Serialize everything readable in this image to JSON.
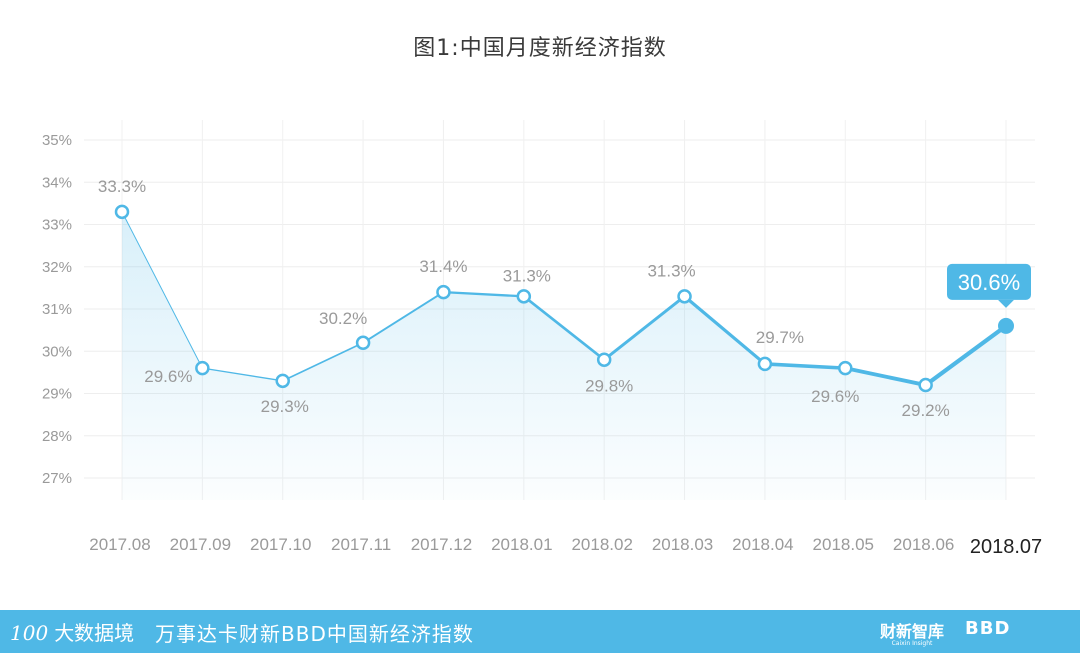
{
  "chart_data": {
    "type": "line",
    "title": "图1:中国月度新经济指数",
    "categories": [
      "2017.08",
      "2017.09",
      "2017.10",
      "2017.11",
      "2017.12",
      "2018.01",
      "2018.02",
      "2018.03",
      "2018.04",
      "2018.05",
      "2018.06",
      "2018.07"
    ],
    "series": [
      {
        "values": [
          33.3,
          29.6,
          29.3,
          30.2,
          31.4,
          31.3,
          29.8,
          31.3,
          29.7,
          29.6,
          29.2,
          30.6
        ]
      }
    ],
    "data_labels": [
      "33.3%",
      "29.6%",
      "29.3%",
      "30.2%",
      "31.4%",
      "31.3%",
      "29.8%",
      "31.3%",
      "29.7%",
      "29.6%",
      "29.2%",
      "30.6%"
    ],
    "yticks": [
      "27%",
      "28%",
      "29%",
      "30%",
      "31%",
      "32%",
      "33%",
      "34%",
      "35%"
    ],
    "ylim": [
      27,
      35
    ],
    "grid": true,
    "line_color": "#4fb8e6",
    "highlight_last": true
  },
  "footer": {
    "left_brand_num": "100",
    "left_brand_text": "大数据境",
    "subtitle": "万事达卡财新BBD中国新经济指数",
    "logo_caixin": "财新智库",
    "logo_caixin_sub": "Caixin Insight",
    "logo_bbd": "BBD"
  }
}
